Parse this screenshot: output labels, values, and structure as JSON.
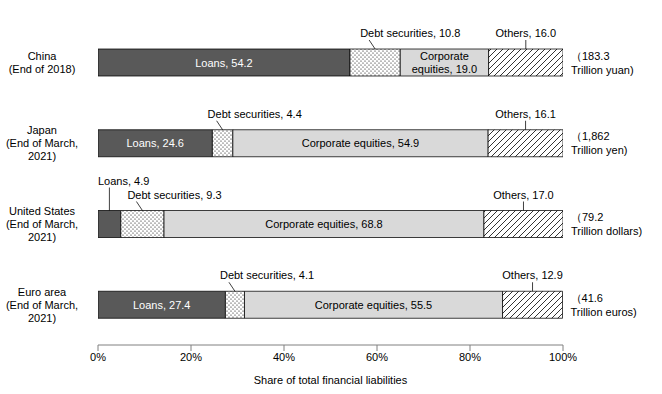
{
  "chart_data": {
    "type": "bar",
    "orientation": "horizontal",
    "stacked": true,
    "data_labels": true,
    "grid": false,
    "categories": [
      "China\n(End of 2018)",
      "Japan\n(End of March,\n2021)",
      "United States\n(End of March,\n2021)",
      "Euro area\n(End of March,\n2021)"
    ],
    "series": [
      {
        "name": "Loans",
        "color": "#595959",
        "values": [
          54.2,
          24.6,
          4.9,
          27.4
        ],
        "value_labels": [
          "Loans, 54.2",
          "Loans, 24.6",
          "Loans, 4.9",
          "Loans, 27.4"
        ]
      },
      {
        "name": "Debt securities",
        "color": "#ffffff",
        "values": [
          10.8,
          4.4,
          9.3,
          4.1
        ],
        "value_labels": [
          "Debt securities, 10.8",
          "Debt securities, 4.4",
          "Debt securities, 9.3",
          "Debt securities, 4.1"
        ]
      },
      {
        "name": "Corporate equities",
        "color": "#d9d9d9",
        "values": [
          19.0,
          54.9,
          68.8,
          55.5
        ],
        "value_labels": [
          "Corporate equities, 19.0",
          "Corporate equities, 54.9",
          "Corporate equities, 68.8",
          "Corporate equities, 55.5"
        ]
      },
      {
        "name": "Others",
        "color": "#ffffff",
        "values": [
          16.0,
          16.1,
          17.0,
          12.9
        ],
        "value_labels": [
          "Others, 16.0",
          "Others, 16.1",
          "Others, 17.0",
          "Others, 12.9"
        ]
      }
    ],
    "xlim": [
      0,
      100
    ],
    "xticks": [
      {
        "value": 0,
        "label": "0%"
      },
      {
        "value": 20,
        "label": "20%"
      },
      {
        "value": 40,
        "label": "40%"
      },
      {
        "value": 60,
        "label": "60%"
      },
      {
        "value": 80,
        "label": "80%"
      },
      {
        "value": 100,
        "label": "100%"
      }
    ],
    "x_label": "Share of total financial liabilities",
    "annotations": [
      "（183.3\nTrillion yuan)",
      "（1,862\nTrillion yen)",
      "（79.2\nTrillion dollars)",
      "（41.6\nTrillion euros)"
    ]
  }
}
